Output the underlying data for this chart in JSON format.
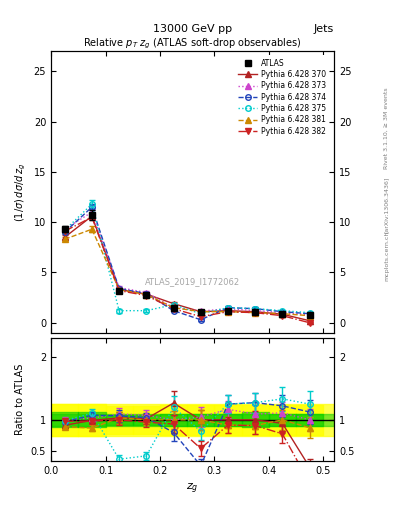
{
  "title_top": "13000 GeV pp",
  "title_right": "Jets",
  "plot_title": "Relative $p_T$ $z_g$ (ATLAS soft-drop observables)",
  "xlabel": "$z_g$",
  "ylabel_top": "$(1/\\sigma)\\, d\\sigma/d\\, z_g$",
  "ylabel_bot": "Ratio to ATLAS",
  "watermark": "ATLAS_2019_I1772062",
  "rivet_label": "Rivet 3.1.10, ≥ 3M events",
  "arxiv_label": "[arXiv:1306.3436]",
  "mcplots_label": "mcplots.cern.ch",
  "xbins": [
    0.0,
    0.05,
    0.1,
    0.15,
    0.2,
    0.25,
    0.3,
    0.35,
    0.4,
    0.45,
    0.5
  ],
  "xcenters": [
    0.025,
    0.075,
    0.125,
    0.175,
    0.225,
    0.275,
    0.325,
    0.375,
    0.425,
    0.475
  ],
  "atlas_y": [
    9.3,
    10.7,
    3.2,
    2.8,
    1.5,
    1.1,
    1.2,
    1.1,
    0.9,
    0.8
  ],
  "atlas_yerr": [
    0.3,
    0.5,
    0.2,
    0.15,
    0.15,
    0.12,
    0.1,
    0.1,
    0.1,
    0.1
  ],
  "mc_data": {
    "370": {
      "y": [
        8.5,
        10.6,
        3.3,
        2.85,
        1.9,
        1.1,
        1.2,
        1.1,
        0.85,
        0.2
      ],
      "yerr": [
        0.2,
        0.3,
        0.2,
        0.15,
        0.2,
        0.12,
        0.12,
        0.12,
        0.1,
        0.1
      ],
      "color": "#b22222",
      "marker": "^",
      "linestyle": "-",
      "label": "Pythia 6.428 370"
    },
    "373": {
      "y": [
        9.3,
        11.0,
        3.5,
        3.0,
        1.5,
        1.15,
        1.4,
        1.2,
        1.0,
        0.8
      ],
      "yerr": [
        0.2,
        0.3,
        0.2,
        0.15,
        0.15,
        0.12,
        0.12,
        0.12,
        0.1,
        0.1
      ],
      "color": "#cc44cc",
      "marker": "^",
      "linestyle": ":",
      "label": "Pythia 6.428 373"
    },
    "374": {
      "y": [
        9.0,
        11.5,
        3.4,
        2.9,
        1.2,
        0.3,
        1.5,
        1.4,
        1.1,
        0.9
      ],
      "yerr": [
        0.2,
        0.3,
        0.2,
        0.15,
        0.15,
        0.12,
        0.12,
        0.12,
        0.1,
        0.1
      ],
      "color": "#2244bb",
      "marker": "o",
      "linestyle": "--",
      "label": "Pythia 6.428 374"
    },
    "375": {
      "y": [
        9.2,
        11.8,
        1.2,
        1.2,
        1.8,
        0.9,
        1.5,
        1.4,
        1.2,
        1.0
      ],
      "yerr": [
        0.3,
        0.4,
        0.2,
        0.15,
        0.2,
        0.12,
        0.12,
        0.12,
        0.1,
        0.1
      ],
      "color": "#00cccc",
      "marker": "o",
      "linestyle": ":",
      "label": "Pythia 6.428 375"
    },
    "381": {
      "y": [
        8.3,
        9.3,
        3.3,
        2.8,
        1.5,
        1.1,
        1.1,
        1.0,
        0.9,
        0.7
      ],
      "yerr": [
        0.2,
        0.3,
        0.2,
        0.15,
        0.15,
        0.12,
        0.12,
        0.12,
        0.1,
        0.1
      ],
      "color": "#cc8800",
      "marker": "^",
      "linestyle": "--",
      "label": "Pythia 6.428 381"
    },
    "382": {
      "y": [
        9.1,
        10.5,
        3.2,
        2.7,
        1.4,
        0.6,
        1.1,
        1.0,
        0.7,
        0.0
      ],
      "yerr": [
        0.2,
        0.3,
        0.2,
        0.15,
        0.15,
        0.12,
        0.12,
        0.12,
        0.1,
        0.1
      ],
      "color": "#cc2222",
      "marker": "v",
      "linestyle": "-.",
      "label": "Pythia 6.428 382"
    }
  },
  "ratio_band_green": [
    0.9,
    1.1
  ],
  "ratio_band_yellow": [
    0.75,
    1.25
  ],
  "ratio_ylim": [
    0.35,
    2.3
  ],
  "main_ylim": [
    -1.0,
    27.0
  ],
  "xlim": [
    0.0,
    0.52
  ]
}
